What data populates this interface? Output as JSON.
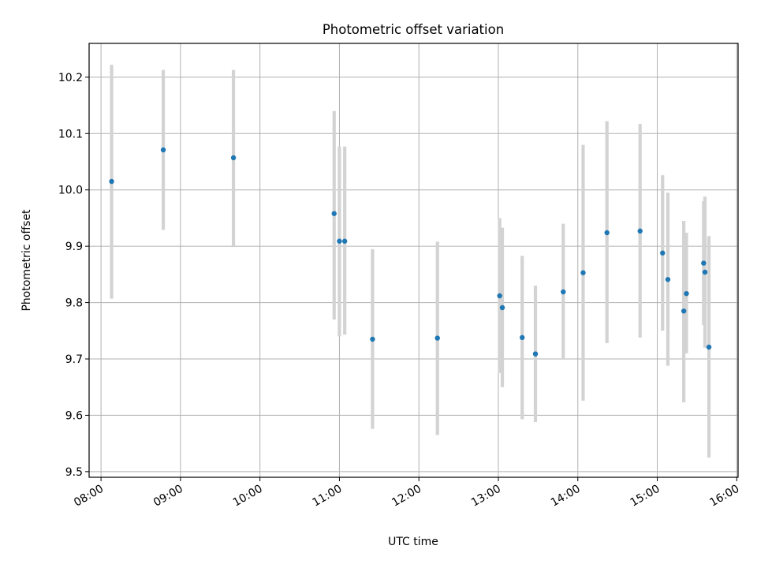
{
  "chart_data": {
    "type": "scatter",
    "title": "Photometric offset variation",
    "xlabel": "UTC time",
    "ylabel": "Photometric offset",
    "x_tick_labels": [
      "08:00",
      "09:00",
      "10:00",
      "11:00",
      "12:00",
      "13:00",
      "14:00",
      "15:00",
      "16:00"
    ],
    "y_tick_labels": [
      "9.5",
      "9.6",
      "9.7",
      "9.8",
      "9.9",
      "10.0",
      "10.1",
      "10.2"
    ],
    "y_ticks": [
      9.5,
      9.6,
      9.7,
      9.8,
      9.9,
      10.0,
      10.1,
      10.2
    ],
    "xlim": [
      "07:51",
      "16:01"
    ],
    "ylim": [
      9.49,
      10.26
    ],
    "grid": true,
    "colors": {
      "points": "#1f77b4",
      "error_bars": "#d3d3d3"
    },
    "points": [
      {
        "x": "08:08",
        "y": 10.015,
        "ylow": 9.807,
        "yhigh": 10.222
      },
      {
        "x": "08:47",
        "y": 10.071,
        "ylow": 9.929,
        "yhigh": 10.213
      },
      {
        "x": "09:40",
        "y": 10.057,
        "ylow": 9.901,
        "yhigh": 10.213
      },
      {
        "x": "10:56",
        "y": 9.958,
        "ylow": 9.77,
        "yhigh": 10.14
      },
      {
        "x": "11:00",
        "y": 9.909,
        "ylow": 9.74,
        "yhigh": 10.077
      },
      {
        "x": "11:04",
        "y": 9.909,
        "ylow": 9.743,
        "yhigh": 10.077
      },
      {
        "x": "11:25",
        "y": 9.735,
        "ylow": 9.576,
        "yhigh": 9.895
      },
      {
        "x": "12:14",
        "y": 9.737,
        "ylow": 9.565,
        "yhigh": 9.908
      },
      {
        "x": "13:01",
        "y": 9.812,
        "ylow": 9.675,
        "yhigh": 9.95
      },
      {
        "x": "13:03",
        "y": 9.791,
        "ylow": 9.65,
        "yhigh": 9.933
      },
      {
        "x": "13:18",
        "y": 9.738,
        "ylow": 9.593,
        "yhigh": 9.883
      },
      {
        "x": "13:28",
        "y": 9.709,
        "ylow": 9.588,
        "yhigh": 9.83
      },
      {
        "x": "13:49",
        "y": 9.819,
        "ylow": 9.7,
        "yhigh": 9.94
      },
      {
        "x": "14:04",
        "y": 9.853,
        "ylow": 9.626,
        "yhigh": 10.08
      },
      {
        "x": "14:22",
        "y": 9.924,
        "ylow": 9.728,
        "yhigh": 10.122
      },
      {
        "x": "14:47",
        "y": 9.927,
        "ylow": 9.738,
        "yhigh": 10.117
      },
      {
        "x": "15:04",
        "y": 9.888,
        "ylow": 9.75,
        "yhigh": 10.026
      },
      {
        "x": "15:08",
        "y": 9.841,
        "ylow": 9.688,
        "yhigh": 9.995
      },
      {
        "x": "15:20",
        "y": 9.785,
        "ylow": 9.623,
        "yhigh": 9.945
      },
      {
        "x": "15:22",
        "y": 9.816,
        "ylow": 9.71,
        "yhigh": 9.924
      },
      {
        "x": "15:35",
        "y": 9.87,
        "ylow": 9.76,
        "yhigh": 9.98
      },
      {
        "x": "15:36",
        "y": 9.854,
        "ylow": 9.72,
        "yhigh": 9.988
      },
      {
        "x": "15:39",
        "y": 9.721,
        "ylow": 9.525,
        "yhigh": 9.918
      }
    ]
  }
}
